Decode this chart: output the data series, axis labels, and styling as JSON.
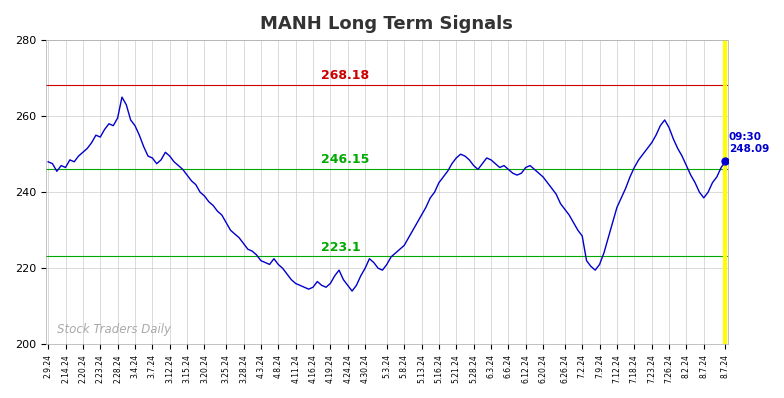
{
  "title": "MANH Long Term Signals",
  "hline_upper": 268.18,
  "hline_middle": 246.15,
  "hline_lower": 223.1,
  "hline_upper_color": "#cc0000",
  "hline_middle_color": "#00aa00",
  "hline_lower_color": "#00aa00",
  "ylim": [
    200,
    280
  ],
  "yticks": [
    200,
    220,
    240,
    260,
    280
  ],
  "last_price": 248.09,
  "vline_color": "#ffff00",
  "watermark": "Stock Traders Daily",
  "watermark_color": "#aaaaaa",
  "line_color": "#0000cc",
  "background_color": "#ffffff",
  "grid_color": "#cccccc",
  "x_labels": [
    "2.9.24",
    "2.14.24",
    "2.20.24",
    "2.23.24",
    "2.28.24",
    "3.4.24",
    "3.7.24",
    "3.12.24",
    "3.15.24",
    "3.20.24",
    "3.25.24",
    "3.28.24",
    "4.3.24",
    "4.8.24",
    "4.11.24",
    "4.16.24",
    "4.19.24",
    "4.24.24",
    "4.30.24",
    "5.3.24",
    "5.8.24",
    "5.13.24",
    "5.16.24",
    "5.21.24",
    "5.28.24",
    "6.3.24",
    "6.6.24",
    "6.12.24",
    "6.20.24",
    "6.26.24",
    "7.2.24",
    "7.9.24",
    "7.12.24",
    "7.18.24",
    "7.23.24",
    "7.26.24",
    "8.2.24",
    "8.7.24",
    "8.7.24"
  ],
  "prices": [
    248.0,
    247.5,
    245.5,
    247.0,
    246.5,
    248.5,
    248.0,
    249.5,
    250.5,
    251.5,
    253.0,
    255.0,
    254.5,
    256.5,
    258.0,
    257.5,
    259.5,
    265.0,
    263.0,
    259.0,
    257.5,
    255.0,
    252.0,
    249.5,
    249.0,
    247.5,
    248.5,
    250.5,
    249.5,
    248.0,
    247.0,
    246.0,
    244.5,
    243.0,
    242.0,
    240.0,
    239.0,
    237.5,
    236.5,
    235.0,
    234.0,
    232.0,
    230.0,
    229.0,
    228.0,
    226.5,
    225.0,
    224.5,
    223.5,
    222.0,
    221.5,
    221.0,
    222.5,
    221.0,
    220.0,
    218.5,
    217.0,
    216.0,
    215.5,
    215.0,
    214.5,
    215.0,
    216.5,
    215.5,
    215.0,
    216.0,
    218.0,
    219.5,
    217.0,
    215.5,
    214.0,
    215.5,
    218.0,
    220.0,
    222.5,
    221.5,
    220.0,
    219.5,
    221.0,
    223.0,
    224.0,
    225.0,
    226.0,
    228.0,
    230.0,
    232.0,
    234.0,
    236.0,
    238.5,
    240.0,
    242.5,
    244.0,
    245.5,
    247.5,
    249.0,
    250.0,
    249.5,
    248.5,
    247.0,
    246.0,
    247.5,
    249.0,
    248.5,
    247.5,
    246.5,
    247.0,
    246.0,
    245.0,
    244.5,
    245.0,
    246.5,
    247.0,
    246.0,
    245.0,
    244.0,
    242.5,
    241.0,
    239.5,
    237.0,
    235.5,
    234.0,
    232.0,
    230.0,
    228.5,
    222.0,
    220.5,
    219.5,
    221.0,
    224.0,
    228.0,
    232.0,
    236.0,
    238.5,
    241.0,
    244.0,
    246.5,
    248.5,
    250.0,
    251.5,
    253.0,
    255.0,
    257.5,
    259.0,
    257.0,
    254.0,
    251.5,
    249.5,
    247.0,
    244.5,
    242.5,
    240.0,
    238.5,
    240.0,
    242.5,
    244.0,
    246.5,
    248.09
  ]
}
